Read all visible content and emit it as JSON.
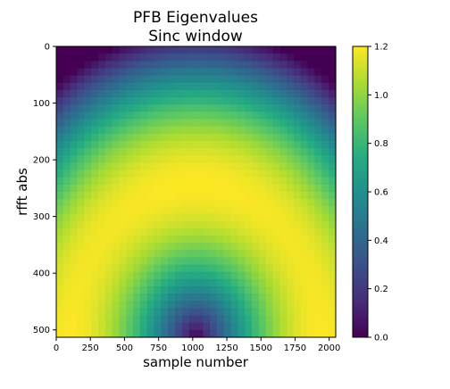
{
  "chart_data": {
    "type": "heatmap",
    "title": "PFB Eigenvalues",
    "subtitle": "Sinc window",
    "xlabel": "sample number",
    "ylabel": "rfft abs",
    "x_range": [
      0,
      2048
    ],
    "y_range": [
      0,
      513
    ],
    "x_ticks": [
      0,
      250,
      500,
      750,
      1000,
      1250,
      1500,
      1750,
      2000
    ],
    "y_ticks": [
      0,
      100,
      200,
      300,
      400,
      500
    ],
    "colormap": "viridis",
    "colorbar_range": [
      0.0,
      1.2
    ],
    "colorbar_ticks": [
      "0.0",
      "0.2",
      "0.4",
      "0.6",
      "0.8",
      "1.0",
      "1.2"
    ],
    "grid": false
  }
}
